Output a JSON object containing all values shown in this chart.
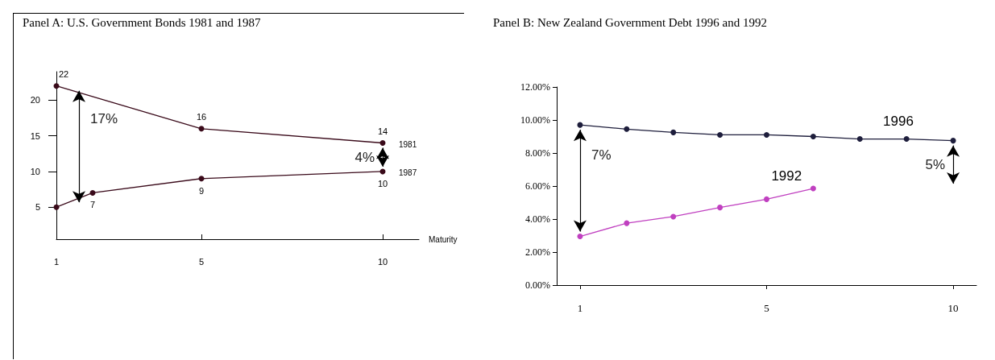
{
  "chart_data": [
    {
      "type": "line",
      "title": "Panel A:  U.S. Government Bonds 1981 and 1987",
      "xlabel": "Maturity",
      "xlim": [
        1,
        11
      ],
      "xticks": [
        1,
        5,
        10
      ],
      "ylim": [
        0.5,
        24
      ],
      "yticks": [
        5,
        10,
        15,
        20
      ],
      "grid": false,
      "legend": false,
      "marker": "circle",
      "series": [
        {
          "name": "1981",
          "color": "#3a0a1a",
          "x": [
            1,
            5,
            10
          ],
          "values": [
            22,
            16,
            14
          ],
          "value_labels": [
            "22",
            "16",
            "14"
          ]
        },
        {
          "name": "1987",
          "color": "#3a0a1a",
          "x": [
            1,
            2,
            5,
            10
          ],
          "values": [
            5,
            7,
            9,
            10
          ],
          "value_labels": [
            null,
            "7",
            "9",
            "10"
          ]
        }
      ],
      "annotations": [
        "17%",
        "4%"
      ]
    },
    {
      "type": "line",
      "title": "Panel B:  New Zealand Government Debt 1996 and 1992",
      "categories": [
        "1",
        null,
        null,
        null,
        "5",
        null,
        null,
        null,
        "10"
      ],
      "ylim": [
        0,
        12
      ],
      "yticks": [
        {
          "value": 0,
          "label": "0.00%"
        },
        {
          "value": 2,
          "label": "2.00%"
        },
        {
          "value": 4,
          "label": "4.00%"
        },
        {
          "value": 6,
          "label": "6.00%"
        },
        {
          "value": 8,
          "label": "8.00%"
        },
        {
          "value": 10,
          "label": "10.00%"
        },
        {
          "value": 12,
          "label": "12.00%"
        }
      ],
      "grid": false,
      "legend": false,
      "marker": "circle",
      "series": [
        {
          "name": "1996",
          "color": "#1e1e3c",
          "values": [
            9.7,
            9.45,
            9.25,
            9.1,
            9.1,
            9.0,
            8.85,
            8.85,
            8.75
          ]
        },
        {
          "name": "1992",
          "color": "#c040c0",
          "values": [
            2.95,
            3.75,
            4.15,
            4.7,
            5.2,
            5.85,
            null,
            null,
            null
          ]
        }
      ],
      "annotations": [
        "7%",
        "5%"
      ]
    }
  ]
}
